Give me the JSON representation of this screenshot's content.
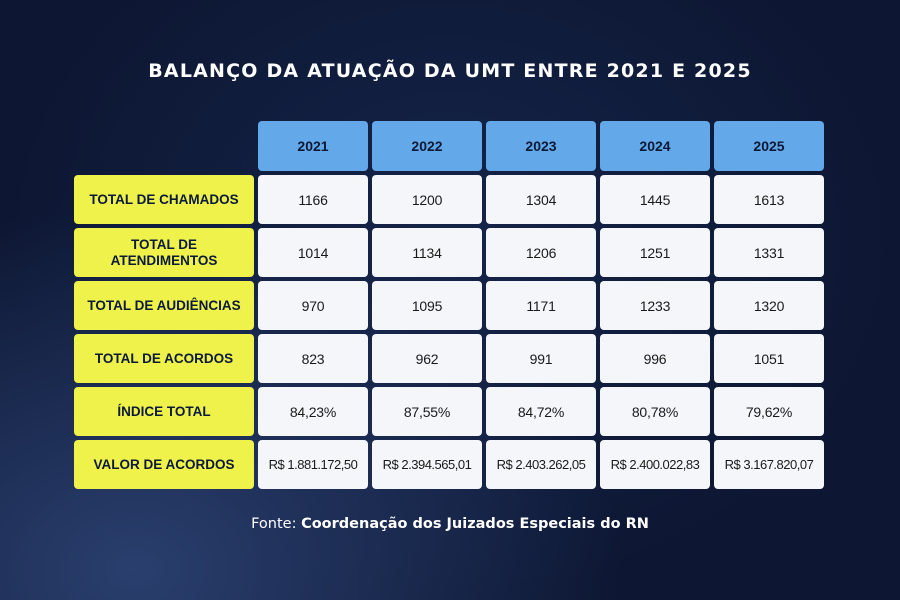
{
  "title": "BALANÇO DA ATUAÇÃO DA UMT ENTRE 2021 E 2025",
  "source_prefix": "Fonte:",
  "source_name": "Coordenação dos Juizados Especiais do RN",
  "chart_data": {
    "type": "table",
    "title": "BALANÇO DA ATUAÇÃO DA UMT ENTRE 2021 E 2025",
    "columns": [
      "2021",
      "2022",
      "2023",
      "2024",
      "2025"
    ],
    "rows": [
      {
        "label": "TOTAL DE CHAMADOS",
        "values": [
          "1166",
          "1200",
          "1304",
          "1445",
          "1613"
        ]
      },
      {
        "label": "TOTAL DE ATENDIMENTOS",
        "values": [
          "1014",
          "1134",
          "1206",
          "1251",
          "1331"
        ]
      },
      {
        "label": "TOTAL DE AUDIÊNCIAS",
        "values": [
          "970",
          "1095",
          "1171",
          "1233",
          "1320"
        ]
      },
      {
        "label": "TOTAL DE ACORDOS",
        "values": [
          "823",
          "962",
          "991",
          "996",
          "1051"
        ]
      },
      {
        "label": "ÍNDICE TOTAL",
        "values": [
          "84,23%",
          "87,55%",
          "84,72%",
          "80,78%",
          "79,62%"
        ]
      },
      {
        "label": "VALOR DE ACORDOS",
        "values": [
          "R$ 1.881.172,50",
          "R$ 2.394.565,01",
          "R$ 2.403.262,05",
          "R$ 2.400.022,83",
          "R$ 3.167.820,07"
        ]
      }
    ]
  },
  "colors": {
    "background": "#0d1733",
    "header_fill": "#63a8e8",
    "row_label_fill": "#eef24a",
    "value_fill": "#f4f6f9"
  }
}
